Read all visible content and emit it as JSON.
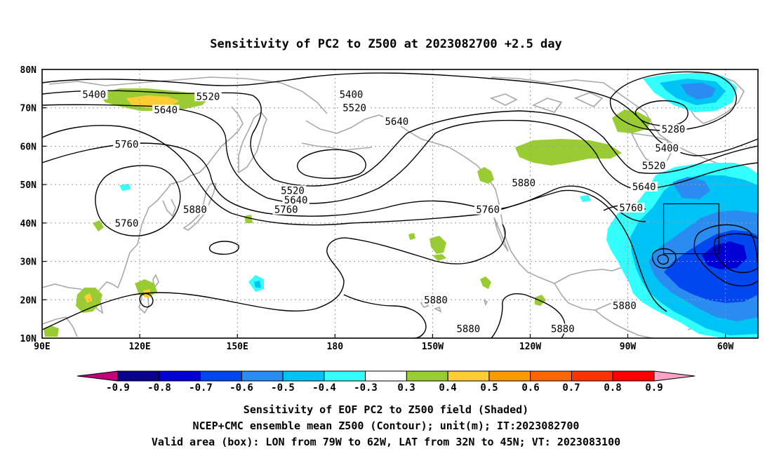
{
  "title": "Sensitivity of PC2 to Z500 at 2023082700 +2.5 day",
  "map": {
    "lat_labels": [
      "80N",
      "70N",
      "60N",
      "50N",
      "40N",
      "30N",
      "20N",
      "10N"
    ],
    "lon_labels": [
      "90E",
      "120E",
      "150E",
      "180",
      "150W",
      "120W",
      "90W",
      "60W"
    ],
    "lat_range": [
      10,
      80
    ],
    "lon_range_deg_east": [
      90,
      310
    ],
    "grid": true,
    "valid_box": {
      "lon_from": "79W",
      "lon_to": "62W",
      "lat_from": "32N",
      "lat_to": "45N"
    },
    "contour_labels": [
      {
        "text": "5400",
        "lon": 106,
        "lat": 73.5
      },
      {
        "text": "5520",
        "lon": 141,
        "lat": 73.0
      },
      {
        "text": "5640",
        "lon": 128,
        "lat": 69.5
      },
      {
        "text": "5400",
        "lon": 185,
        "lat": 73.5
      },
      {
        "text": "5520",
        "lon": 186,
        "lat": 70.0
      },
      {
        "text": "5640",
        "lon": 199,
        "lat": 66.5
      },
      {
        "text": "5760",
        "lon": 116,
        "lat": 60.5
      },
      {
        "text": "5760",
        "lon": 116,
        "lat": 40.0
      },
      {
        "text": "5880",
        "lon": 137,
        "lat": 43.5
      },
      {
        "text": "5520",
        "lon": 167,
        "lat": 48.5
      },
      {
        "text": "5640",
        "lon": 168,
        "lat": 46.0
      },
      {
        "text": "5760",
        "lon": 165,
        "lat": 43.5
      },
      {
        "text": "5880",
        "lon": 238,
        "lat": 50.5
      },
      {
        "text": "5760",
        "lon": 227,
        "lat": 43.5
      },
      {
        "text": "5880",
        "lon": 211,
        "lat": 20.0
      },
      {
        "text": "5880",
        "lon": 221,
        "lat": 12.5
      },
      {
        "text": "5880",
        "lon": 250,
        "lat": 12.5
      },
      {
        "text": "5880",
        "lon": 269,
        "lat": 18.5
      },
      {
        "text": "5280",
        "lon": 284,
        "lat": 64.5
      },
      {
        "text": "5400",
        "lon": 282,
        "lat": 59.5
      },
      {
        "text": "5520",
        "lon": 278,
        "lat": 55.0
      },
      {
        "text": "5640",
        "lon": 275,
        "lat": 49.5
      },
      {
        "text": "5760",
        "lon": 271,
        "lat": 44.0
      }
    ]
  },
  "colorbar": {
    "labels": [
      "-0.9",
      "-0.8",
      "-0.7",
      "-0.6",
      "-0.5",
      "-0.4",
      "-0.3",
      "0.3",
      "0.4",
      "0.5",
      "0.6",
      "0.7",
      "0.8",
      "0.9"
    ],
    "colors": [
      "#c4007a",
      "#0a008c",
      "#0000d4",
      "#0047f0",
      "#2a8cf0",
      "#00c3f5",
      "#33ffff",
      "#ffffff",
      "#99cc33",
      "#ffcc33",
      "#ff9900",
      "#ff6600",
      "#ff3300",
      "#ff0000",
      "#ffa2c8"
    ]
  },
  "caption": {
    "line1": "Sensitivity of EOF PC2 to Z500 field (Shaded)",
    "line2": "NCEP+CMC ensemble mean Z500 (Contour); unit(m); IT:2023082700",
    "line3": "Valid area (box): LON from 79W to 62W, LAT from 32N to 45N; VT: 2023083100"
  }
}
